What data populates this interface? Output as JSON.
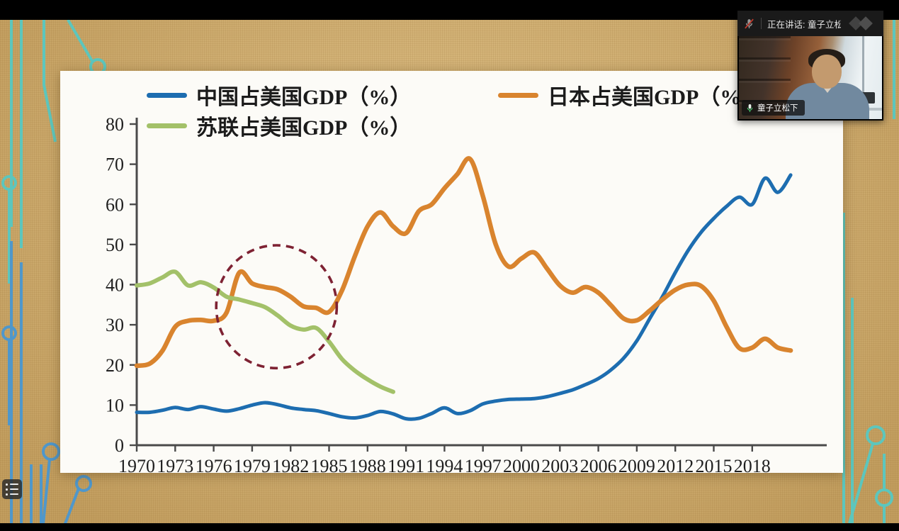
{
  "meeting_overlay": {
    "status_bar": {
      "speaking_text": "正在讲话: 童子立松下;",
      "mic_muted_icon": "microphone-muted",
      "logo_icon": "diamond-logo"
    },
    "video_tile": {
      "participant_name": "童子立松下",
      "mic_icon": "microphone-active"
    }
  },
  "side_toolbar": {
    "list_button_icon": "list"
  },
  "colors": {
    "china_line": "#1d6db0",
    "japan_line": "#d9842e",
    "soviet_line": "#a3c169",
    "annotation_circle": "#7e2233",
    "slide_background": "#fcfbf7",
    "wall_background": "#d5b170",
    "circuit_teal": "#5cc6bd",
    "circuit_blue": "#4f97cb",
    "axis": "#4a4a4a"
  },
  "chart_data": {
    "type": "line",
    "title": "",
    "xlabel": "",
    "ylabel": "",
    "grid": false,
    "legend_position": "top",
    "ylim": [
      0,
      80
    ],
    "yticks": [
      0,
      10,
      20,
      30,
      40,
      50,
      60,
      70,
      80
    ],
    "xticks": [
      1970,
      1973,
      1976,
      1979,
      1982,
      1985,
      1988,
      1991,
      1994,
      1997,
      2000,
      2003,
      2006,
      2009,
      2012,
      2015,
      2018
    ],
    "x": [
      1970,
      1971,
      1972,
      1973,
      1974,
      1975,
      1976,
      1977,
      1978,
      1979,
      1980,
      1981,
      1982,
      1983,
      1984,
      1985,
      1986,
      1987,
      1988,
      1989,
      1990,
      1991,
      1992,
      1993,
      1994,
      1995,
      1996,
      1997,
      1998,
      1999,
      2000,
      2001,
      2002,
      2003,
      2004,
      2005,
      2006,
      2007,
      2008,
      2009,
      2010,
      2011,
      2012,
      2013,
      2014,
      2015,
      2016,
      2017,
      2018,
      2019,
      2020,
      2021
    ],
    "series": [
      {
        "name": "中国占美国GDP（%）",
        "color": "#1d6db0",
        "values": [
          8.2,
          8.2,
          8.7,
          9.4,
          8.9,
          9.6,
          9.0,
          8.5,
          9.1,
          10.0,
          10.6,
          10.1,
          9.3,
          8.9,
          8.6,
          7.9,
          7.1,
          6.8,
          7.4,
          8.4,
          7.8,
          6.6,
          6.7,
          7.9,
          9.3,
          7.9,
          8.6,
          10.3,
          11.0,
          11.4,
          11.5,
          11.6,
          12.1,
          12.9,
          13.8,
          15.1,
          16.6,
          18.8,
          21.8,
          26.0,
          31.5,
          37.0,
          43.0,
          48.5,
          53.0,
          56.5,
          59.5,
          61.8,
          60.0,
          66.5,
          63.0,
          67.3
        ]
      },
      {
        "name": "日本占美国GDP（%）",
        "color": "#d9842e",
        "values": [
          19.8,
          20.3,
          23.5,
          29.5,
          31.0,
          31.2,
          31.0,
          33.0,
          43.0,
          40.3,
          39.4,
          38.8,
          37.0,
          34.6,
          34.2,
          33.2,
          38.5,
          47.0,
          54.5,
          58.0,
          54.5,
          52.8,
          58.3,
          60.0,
          64.0,
          67.5,
          71.3,
          62.0,
          50.0,
          44.5,
          46.5,
          48.0,
          44.0,
          39.8,
          38.0,
          39.4,
          38.0,
          34.8,
          31.5,
          31.1,
          33.5,
          36.3,
          38.7,
          40.0,
          39.7,
          36.0,
          29.5,
          24.2,
          24.3,
          26.5,
          24.3,
          23.6
        ]
      },
      {
        "name": "苏联占美国GDP（%）",
        "color": "#a3c169",
        "values": [
          39.8,
          40.3,
          41.8,
          43.2,
          39.8,
          40.6,
          39.3,
          37.0,
          36.3,
          35.4,
          34.4,
          32.3,
          29.8,
          28.8,
          29.2,
          25.8,
          21.5,
          18.6,
          16.4,
          14.6,
          13.3
        ]
      }
    ],
    "annotation": {
      "shape": "dashed-ellipse",
      "center_year": 1980.9,
      "center_value": 34.5,
      "radius_years": 4.7,
      "radius_value": 15.3,
      "color": "#7e2233"
    }
  }
}
